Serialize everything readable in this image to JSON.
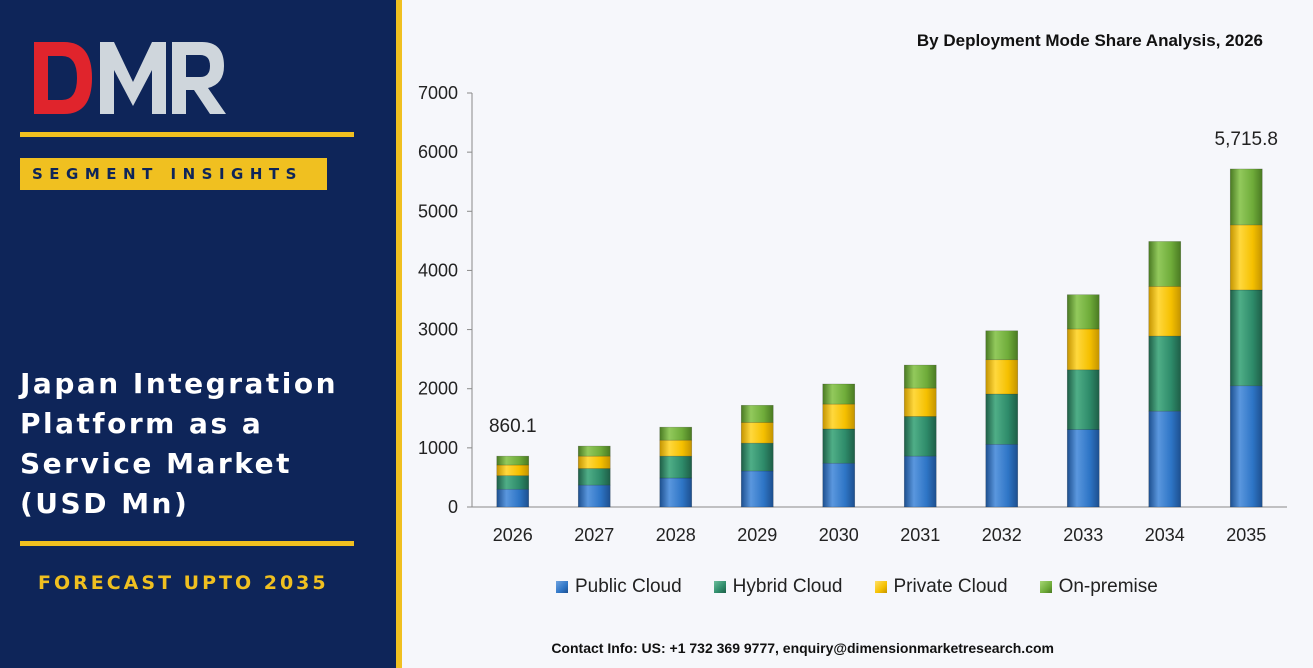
{
  "brand": {
    "logo_text": "DMR",
    "colors": {
      "navy": "#0e2559",
      "gold": "#f0c020",
      "red": "#e0242c",
      "gray": "#cfd6dc"
    }
  },
  "left_panel": {
    "badge": "SEGMENT INSIGHTS",
    "title_lines": [
      "Japan Integration",
      "Platform as a",
      "Service Market",
      "(USD Mn)"
    ],
    "forecast": "FORECAST UPTO 2035"
  },
  "chart_header": {
    "title": "By Deployment Mode Share Analysis, 2026"
  },
  "contact": "Contact Info: US: +1 732 369 9777, enquiry@dimensionmarketresearch.com",
  "chart_data": {
    "type": "bar",
    "stacked": true,
    "categories": [
      "2026",
      "2027",
      "2028",
      "2029",
      "2030",
      "2031",
      "2032",
      "2033",
      "2034",
      "2035"
    ],
    "series": [
      {
        "name": "Public Cloud",
        "color": "#2e75c6",
        "values": [
          300,
          370,
          490,
          610,
          740,
          860,
          1060,
          1310,
          1620,
          2050
        ]
      },
      {
        "name": "Hybrid Cloud",
        "color": "#2e8b6a",
        "values": [
          230,
          280,
          370,
          470,
          580,
          670,
          850,
          1010,
          1270,
          1620
        ]
      },
      {
        "name": "Private Cloud",
        "color": "#f5c000",
        "values": [
          180,
          210,
          270,
          350,
          420,
          480,
          580,
          690,
          840,
          1100
        ]
      },
      {
        "name": "On-premise",
        "color": "#6fac3a",
        "values": [
          150,
          170,
          220,
          290,
          340,
          390,
          490,
          580,
          760,
          946
        ]
      }
    ],
    "data_labels": {
      "2026": "860.1",
      "2035": "5,715.8"
    },
    "ylim": [
      0,
      7000
    ],
    "yticks": [
      0,
      1000,
      2000,
      3000,
      4000,
      5000,
      6000,
      7000
    ],
    "grid": false,
    "legend": "bottom"
  }
}
